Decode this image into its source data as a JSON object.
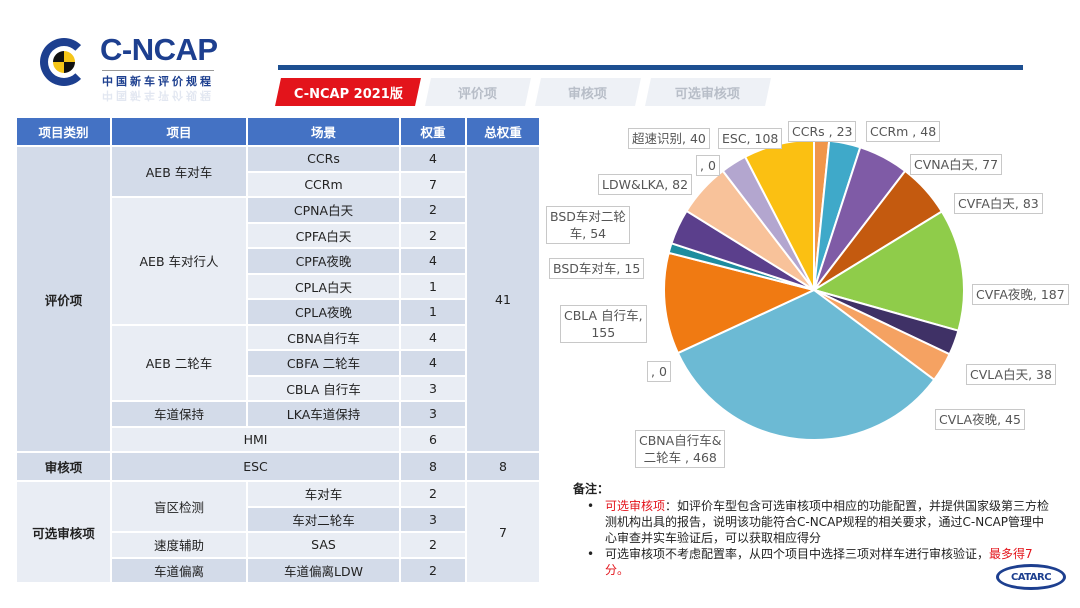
{
  "logo": {
    "title": "C-NCAP",
    "subtitle": "中国新车评价规程",
    "registered": "®"
  },
  "tabs": [
    {
      "label": "C-NCAP 2021版",
      "active": true
    },
    {
      "label": "评价项",
      "active": false
    },
    {
      "label": "审核项",
      "active": false
    },
    {
      "label": "可选审核项",
      "active": false
    }
  ],
  "colors": {
    "brand_blue": "#1d3f8f",
    "accent_red": "#e3141b",
    "table_header": "#4472c4"
  },
  "table": {
    "headers": [
      "项目类别",
      "项目",
      "场景",
      "权重",
      "总权重"
    ],
    "groups": {
      "eval": {
        "category": "评价项",
        "total": "41",
        "items": {
          "aeb_car": {
            "name": "AEB 车对车",
            "rows": [
              {
                "scene": "CCRs",
                "weight": "4"
              },
              {
                "scene": "CCRm",
                "weight": "7"
              }
            ]
          },
          "aeb_ped": {
            "name": "AEB 车对行人",
            "rows": [
              {
                "scene": "CPNA白天",
                "weight": "2"
              },
              {
                "scene": "CPFA白天",
                "weight": "2"
              },
              {
                "scene": "CPFA夜晚",
                "weight": "4"
              },
              {
                "scene": "CPLA白天",
                "weight": "1"
              },
              {
                "scene": "CPLA夜晚",
                "weight": "1"
              }
            ]
          },
          "aeb_two": {
            "name": "AEB 二轮车",
            "rows": [
              {
                "scene": "CBNA自行车",
                "weight": "4"
              },
              {
                "scene": "CBFA 二轮车",
                "weight": "4"
              },
              {
                "scene": "CBLA 自行车",
                "weight": "3"
              }
            ]
          },
          "lka": {
            "name": "车道保持",
            "rows": [
              {
                "scene": "LKA车道保持",
                "weight": "3"
              }
            ]
          },
          "hmi": {
            "name": "HMI",
            "weight": "6"
          }
        }
      },
      "audit": {
        "category": "审核项",
        "item": "ESC",
        "weight": "8",
        "total": "8"
      },
      "optional": {
        "category": "可选审核项",
        "total": "7",
        "items": {
          "bsd": {
            "name": "盲区检测",
            "rows": [
              {
                "scene": "车对车",
                "weight": "2"
              },
              {
                "scene": "车对二轮车",
                "weight": "3"
              }
            ]
          },
          "sas": {
            "name": "速度辅助",
            "rows": [
              {
                "scene": "SAS",
                "weight": "2"
              }
            ]
          },
          "ldw": {
            "name": "车道偏离",
            "rows": [
              {
                "scene": "车道偏离LDW",
                "weight": "2"
              }
            ]
          }
        }
      }
    }
  },
  "chart_data": {
    "type": "pie",
    "title": "",
    "start_angle": "12 o'clock, clockwise",
    "slices": [
      {
        "label": "CCRs",
        "value": 23,
        "color": "#f0964a"
      },
      {
        "label": "CCRm",
        "value": 48,
        "color": "#3fa9c9"
      },
      {
        "label": "CVNA白天",
        "value": 77,
        "color": "#7f5ba6"
      },
      {
        "label": "CVFA白天",
        "value": 83,
        "color": "#c45a0f"
      },
      {
        "label": "CVFA夜晚",
        "value": 187,
        "color": "#8fcc4a"
      },
      {
        "label": "CVLA白天",
        "value": 38,
        "color": "#3f3166"
      },
      {
        "label": "CVLA夜晚",
        "value": 45,
        "color": "#f5a262"
      },
      {
        "label": "CBNA自行车&二轮车",
        "value": 468,
        "color": "#6cbad4"
      },
      {
        "label": "",
        "value": 0,
        "color": "#6cbad4"
      },
      {
        "label": "CBLA 自行车",
        "value": 155,
        "color": "#f07a12"
      },
      {
        "label": "BSD车对车",
        "value": 15,
        "color": "#1e8c9e"
      },
      {
        "label": "BSD车对二轮车",
        "value": 54,
        "color": "#5b3f8c"
      },
      {
        "label": "LDW&LKA",
        "value": 82,
        "color": "#f8c29a"
      },
      {
        "label": "",
        "value": 0,
        "color": "#f8c29a"
      },
      {
        "label": "超速识别",
        "value": 40,
        "color": "#b3a6cf"
      },
      {
        "label": "ESC",
        "value": 108,
        "color": "#fbc012"
      }
    ],
    "data_labels": {
      "ccrs": "CCRs , 23",
      "ccrm": "CCRm , 48",
      "cvna": "CVNA白天, 77",
      "cvfa_day": "CVFA白天, 83",
      "cvfa_night": "CVFA夜晚, 187",
      "cvla_day": "CVLA白天, 38",
      "cvla_night": "CVLA夜晚, 45",
      "cbna_l1": "CBNA自行车&",
      "cbna_l2": "二轮车 , 468",
      "zero_a": ", 0",
      "cbla_l1": "CBLA 自行车,",
      "cbla_l2": "155",
      "bsd_car": "BSD车对车, 15",
      "bsd_two_l1": "BSD车对二轮",
      "bsd_two_l2": "车, 54",
      "ldw": "LDW&LKA, 82",
      "zero_b": ", 0",
      "speed": "超速识别, 40",
      "esc": "ESC, 108"
    }
  },
  "notes": {
    "title": "备注：",
    "item1_highlight": "可选审核项",
    "item1_text": "：如评价车型包含可选审核项中相应的功能配置，并提供国家级第三方检测机构出具的报告，说明该功能符合C-NCAP规程的相关要求，通过C-NCAP管理中心审查并实车验证后，可以获取相应得分",
    "item2_text": "可选审核项不考虑配置率，从四个项目中选择三项对样车进行审核验证，",
    "item2_highlight": "最多得7分。"
  },
  "footer_logo": "CATARC"
}
